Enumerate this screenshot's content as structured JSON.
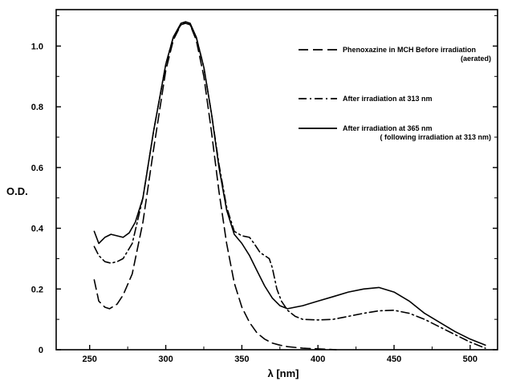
{
  "chart_data": {
    "type": "line",
    "xlabel": "λ [nm]",
    "ylabel": "O.D.",
    "xlim": [
      228,
      518
    ],
    "ylim": [
      0,
      1.12
    ],
    "x_ticks": [
      250,
      300,
      350,
      400,
      450,
      500
    ],
    "x_tick_labels": [
      "250",
      "300",
      "350",
      "400",
      "450",
      "500"
    ],
    "y_ticks": [
      0,
      0.2,
      0.4,
      0.6,
      0.8,
      1.0
    ],
    "y_tick_labels": [
      "0",
      "0.2",
      "0.4",
      "0.6",
      "0.8",
      "1.0"
    ],
    "grid": false,
    "legend_position": "upper-right",
    "series": [
      {
        "name": "Phenoxazine in MCH Before irradiation (aerated)",
        "legend_lines": [
          "Phenoxazine in MCH Before irradiation",
          "(aerated)"
        ],
        "style": "dashed",
        "x": [
          253,
          256,
          260,
          263,
          268,
          272,
          278,
          285,
          292,
          300,
          305,
          310,
          313,
          316,
          320,
          325,
          330,
          335,
          340,
          345,
          350,
          355,
          360,
          365,
          370,
          375,
          380,
          390,
          400,
          412
        ],
        "y": [
          0.23,
          0.16,
          0.14,
          0.135,
          0.15,
          0.18,
          0.25,
          0.42,
          0.66,
          0.92,
          1.02,
          1.07,
          1.075,
          1.07,
          1.02,
          0.9,
          0.72,
          0.52,
          0.35,
          0.22,
          0.14,
          0.09,
          0.055,
          0.035,
          0.022,
          0.015,
          0.01,
          0.005,
          0.003,
          0.0
        ]
      },
      {
        "name": "After irradiation at 313 nm",
        "legend_lines": [
          "After irradiation at 313 nm"
        ],
        "style": "dash-dot",
        "x": [
          253,
          256,
          260,
          264,
          268,
          272,
          278,
          285,
          292,
          300,
          305,
          310,
          313,
          316,
          320,
          325,
          330,
          335,
          340,
          345,
          350,
          355,
          358,
          362,
          365,
          368,
          370,
          373,
          376,
          380,
          385,
          390,
          400,
          410,
          420,
          430,
          440,
          450,
          460,
          470,
          480,
          490,
          500,
          505,
          510
        ],
        "y": [
          0.34,
          0.31,
          0.29,
          0.285,
          0.29,
          0.3,
          0.35,
          0.5,
          0.72,
          0.94,
          1.03,
          1.07,
          1.078,
          1.07,
          1.03,
          0.93,
          0.78,
          0.61,
          0.47,
          0.39,
          0.375,
          0.37,
          0.35,
          0.32,
          0.31,
          0.3,
          0.27,
          0.2,
          0.16,
          0.13,
          0.11,
          0.1,
          0.098,
          0.1,
          0.11,
          0.12,
          0.128,
          0.13,
          0.12,
          0.1,
          0.075,
          0.05,
          0.025,
          0.015,
          0.005
        ]
      },
      {
        "name": "After irradiation at 365 nm (following irradiation at 313 nm)",
        "legend_lines": [
          "After irradiation at 365 nm",
          "( following irradiation at 313 nm)"
        ],
        "style": "solid",
        "x": [
          253,
          256,
          260,
          264,
          268,
          272,
          276,
          280,
          285,
          292,
          300,
          305,
          310,
          313,
          316,
          320,
          325,
          330,
          335,
          340,
          345,
          350,
          355,
          360,
          365,
          370,
          375,
          380,
          390,
          400,
          410,
          420,
          430,
          440,
          450,
          460,
          470,
          480,
          490,
          500,
          505,
          510
        ],
        "y": [
          0.39,
          0.35,
          0.37,
          0.38,
          0.375,
          0.37,
          0.385,
          0.42,
          0.5,
          0.72,
          0.94,
          1.03,
          1.075,
          1.08,
          1.075,
          1.03,
          0.93,
          0.78,
          0.6,
          0.46,
          0.38,
          0.35,
          0.31,
          0.26,
          0.21,
          0.17,
          0.145,
          0.135,
          0.145,
          0.16,
          0.175,
          0.19,
          0.2,
          0.205,
          0.19,
          0.16,
          0.12,
          0.09,
          0.06,
          0.035,
          0.025,
          0.015
        ]
      }
    ]
  }
}
